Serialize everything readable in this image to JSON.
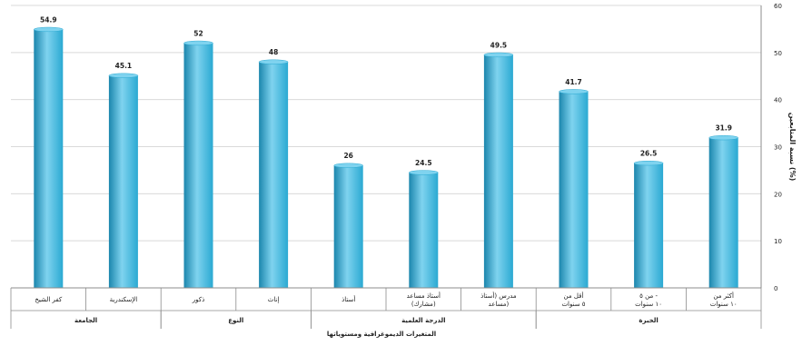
{
  "chart_data": {
    "type": "bar",
    "ylabel": "نسبة المتابعين (%)",
    "xlabel": "المتغيرات الديموغرافية ومستوياتها",
    "ylim": [
      0,
      60
    ],
    "yticks": [
      0,
      10,
      20,
      30,
      40,
      50,
      60
    ],
    "grid": true,
    "categories": [
      "أكثر من ١٠ سنوات",
      "من ٥ - ١٠ سنوات",
      "أقل من ٥ سنوات",
      "مدرس (أستاذ مساعد)",
      "أستاذ مساعد (مشارك)",
      "أستاذ",
      "إناث",
      "ذكور",
      "الإسكندرية",
      "كفر الشيخ"
    ],
    "values": [
      31.9,
      26.5,
      41.7,
      49.5,
      24.5,
      26,
      48,
      52,
      45.1,
      54.9
    ],
    "value_labels": [
      "31.9",
      "26.5",
      "41.7",
      "49.5",
      "24.5",
      "26",
      "48",
      "52",
      "45.1",
      "54.9"
    ],
    "groups": [
      {
        "label": "الخبرة",
        "start": 0,
        "end": 2
      },
      {
        "label": "الدرجة العلمية",
        "start": 3,
        "end": 5
      },
      {
        "label": "النوع",
        "start": 6,
        "end": 7
      },
      {
        "label": "الجامعة",
        "start": 8,
        "end": 9
      }
    ],
    "colors": {
      "bar": "#2aa9d2",
      "bar_light": "#7fd3ef",
      "bar_dark": "#1b86ad",
      "grid": "#d9d9d9",
      "axis": "#8c8c8c",
      "text": "#222222"
    }
  }
}
